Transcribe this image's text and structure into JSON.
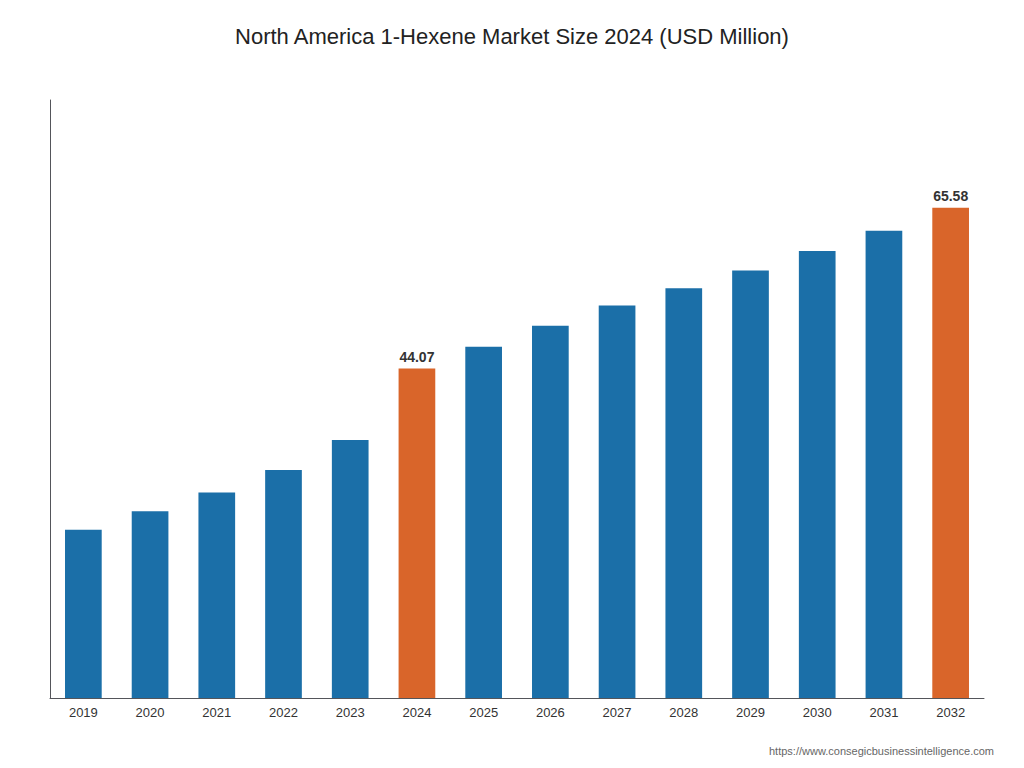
{
  "chart_data": {
    "type": "bar",
    "title": "North America 1-Hexene Market Size 2024 (USD Million)",
    "categories": [
      "2019",
      "2020",
      "2021",
      "2022",
      "2023",
      "2024",
      "2025",
      "2026",
      "2027",
      "2028",
      "2029",
      "2030",
      "2031",
      "2032"
    ],
    "values": [
      22.5,
      25.0,
      27.5,
      30.5,
      34.5,
      44.07,
      47.0,
      49.8,
      52.5,
      54.8,
      57.2,
      59.8,
      62.5,
      65.58
    ],
    "value_labels": [
      null,
      null,
      null,
      null,
      null,
      "44.07",
      null,
      null,
      null,
      null,
      null,
      null,
      null,
      "65.58"
    ],
    "colors": [
      "#1B6FA8",
      "#1B6FA8",
      "#1B6FA8",
      "#1B6FA8",
      "#1B6FA8",
      "#D9652A",
      "#1B6FA8",
      "#1B6FA8",
      "#1B6FA8",
      "#1B6FA8",
      "#1B6FA8",
      "#1B6FA8",
      "#1B6FA8",
      "#D9652A"
    ],
    "annotations": [
      "https://www.consegicbusinessintelligence.com"
    ],
    "ylim": [
      0,
      80
    ],
    "tick_labels": "x",
    "grid": false
  }
}
